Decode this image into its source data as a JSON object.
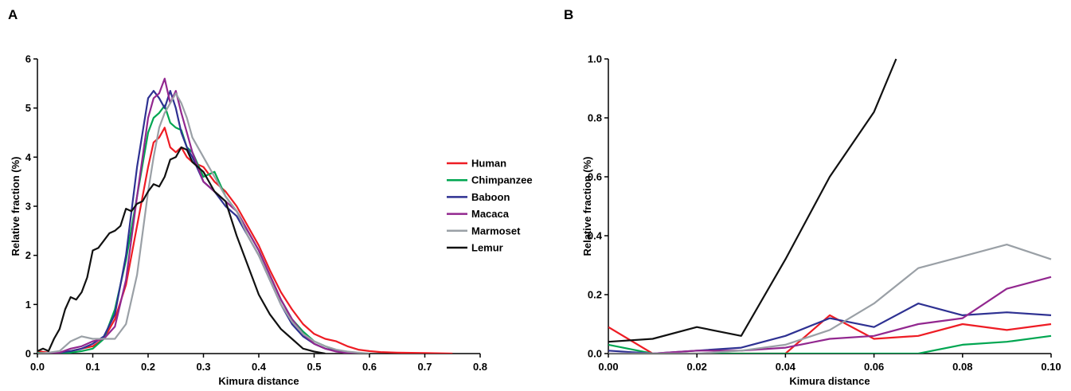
{
  "chart_data": [
    {
      "panel": "A",
      "type": "line",
      "xlabel": "Kimura distance",
      "ylabel": "Relative fraction (%)",
      "xlim": [
        0,
        0.8
      ],
      "ylim": [
        0,
        6
      ],
      "xticks": [
        "0.0",
        "0.1",
        "0.2",
        "0.3",
        "0.4",
        "0.5",
        "0.6",
        "0.7",
        "0.8"
      ],
      "yticks": [
        "0",
        "1",
        "2",
        "3",
        "4",
        "5",
        "6"
      ],
      "grid": false,
      "legend_position": "right",
      "series": [
        {
          "name": "Human",
          "color": "#ee1c24",
          "x": [
            0.0,
            0.02,
            0.04,
            0.06,
            0.08,
            0.1,
            0.12,
            0.14,
            0.16,
            0.18,
            0.2,
            0.21,
            0.22,
            0.23,
            0.24,
            0.25,
            0.26,
            0.27,
            0.28,
            0.3,
            0.32,
            0.34,
            0.36,
            0.38,
            0.4,
            0.42,
            0.44,
            0.46,
            0.48,
            0.5,
            0.52,
            0.54,
            0.56,
            0.58,
            0.6,
            0.62,
            0.65,
            0.7,
            0.75
          ],
          "y": [
            0.05,
            0.02,
            0.0,
            0.05,
            0.1,
            0.15,
            0.3,
            0.7,
            1.4,
            2.6,
            3.8,
            4.3,
            4.4,
            4.6,
            4.2,
            4.1,
            4.2,
            4.0,
            3.9,
            3.8,
            3.5,
            3.3,
            3.0,
            2.6,
            2.2,
            1.7,
            1.25,
            0.9,
            0.6,
            0.4,
            0.3,
            0.25,
            0.15,
            0.08,
            0.05,
            0.03,
            0.02,
            0.01,
            0.0
          ]
        },
        {
          "name": "Chimpanzee",
          "color": "#00a651",
          "x": [
            0.0,
            0.02,
            0.04,
            0.06,
            0.08,
            0.1,
            0.12,
            0.14,
            0.16,
            0.18,
            0.2,
            0.21,
            0.22,
            0.23,
            0.24,
            0.25,
            0.26,
            0.27,
            0.28,
            0.3,
            0.32,
            0.34,
            0.36,
            0.38,
            0.4,
            0.42,
            0.44,
            0.46,
            0.48,
            0.5,
            0.52,
            0.54,
            0.56,
            0.58,
            0.6
          ],
          "y": [
            0.02,
            0.0,
            0.0,
            0.02,
            0.05,
            0.1,
            0.3,
            0.9,
            1.9,
            3.2,
            4.5,
            4.8,
            4.9,
            5.05,
            4.7,
            4.6,
            4.55,
            4.2,
            4.1,
            3.6,
            3.7,
            3.2,
            2.9,
            2.5,
            2.1,
            1.6,
            1.1,
            0.7,
            0.45,
            0.25,
            0.15,
            0.07,
            0.03,
            0.01,
            0.0
          ]
        },
        {
          "name": "Baboon",
          "color": "#2e3192",
          "x": [
            0.0,
            0.02,
            0.04,
            0.06,
            0.08,
            0.1,
            0.12,
            0.14,
            0.16,
            0.18,
            0.2,
            0.21,
            0.22,
            0.23,
            0.24,
            0.25,
            0.26,
            0.27,
            0.28,
            0.3,
            0.32,
            0.34,
            0.36,
            0.38,
            0.4,
            0.42,
            0.44,
            0.46,
            0.48,
            0.5,
            0.52,
            0.54,
            0.56,
            0.58
          ],
          "y": [
            0.0,
            0.0,
            0.02,
            0.05,
            0.1,
            0.2,
            0.35,
            0.8,
            2.0,
            3.8,
            5.2,
            5.35,
            5.2,
            5.0,
            5.35,
            5.0,
            4.5,
            4.2,
            4.0,
            3.5,
            3.3,
            3.0,
            2.8,
            2.4,
            2.0,
            1.5,
            1.0,
            0.6,
            0.35,
            0.2,
            0.1,
            0.05,
            0.02,
            0.0
          ]
        },
        {
          "name": "Macaca",
          "color": "#92278f",
          "x": [
            0.0,
            0.02,
            0.04,
            0.06,
            0.08,
            0.1,
            0.12,
            0.14,
            0.16,
            0.18,
            0.2,
            0.21,
            0.22,
            0.23,
            0.24,
            0.25,
            0.26,
            0.27,
            0.28,
            0.3,
            0.32,
            0.34,
            0.36,
            0.38,
            0.4,
            0.42,
            0.44,
            0.46,
            0.48,
            0.5,
            0.52,
            0.54,
            0.56,
            0.58
          ],
          "y": [
            0.0,
            0.0,
            0.02,
            0.1,
            0.15,
            0.25,
            0.3,
            0.55,
            1.5,
            3.2,
            4.8,
            5.2,
            5.3,
            5.6,
            5.1,
            5.35,
            4.9,
            4.5,
            4.1,
            3.5,
            3.3,
            3.1,
            2.9,
            2.5,
            2.1,
            1.6,
            1.1,
            0.7,
            0.4,
            0.2,
            0.1,
            0.04,
            0.01,
            0.0
          ]
        },
        {
          "name": "Marmoset",
          "color": "#9aa0a6",
          "x": [
            0.0,
            0.02,
            0.04,
            0.06,
            0.08,
            0.1,
            0.12,
            0.14,
            0.16,
            0.18,
            0.2,
            0.21,
            0.22,
            0.23,
            0.24,
            0.25,
            0.26,
            0.27,
            0.28,
            0.3,
            0.32,
            0.34,
            0.36,
            0.38,
            0.4,
            0.42,
            0.44,
            0.46,
            0.48,
            0.5,
            0.52,
            0.54,
            0.56,
            0.58,
            0.6
          ],
          "y": [
            0.0,
            0.02,
            0.05,
            0.25,
            0.35,
            0.3,
            0.3,
            0.3,
            0.6,
            1.6,
            3.3,
            4.0,
            4.6,
            4.9,
            5.1,
            5.3,
            5.1,
            4.8,
            4.4,
            4.0,
            3.6,
            3.2,
            2.9,
            2.4,
            2.0,
            1.5,
            1.0,
            0.65,
            0.4,
            0.25,
            0.15,
            0.08,
            0.04,
            0.02,
            0.0
          ]
        },
        {
          "name": "Lemur",
          "color": "#111111",
          "x": [
            0.0,
            0.01,
            0.02,
            0.03,
            0.04,
            0.05,
            0.06,
            0.07,
            0.08,
            0.09,
            0.1,
            0.11,
            0.12,
            0.13,
            0.14,
            0.15,
            0.16,
            0.17,
            0.18,
            0.19,
            0.2,
            0.21,
            0.22,
            0.23,
            0.24,
            0.25,
            0.26,
            0.27,
            0.28,
            0.29,
            0.3,
            0.32,
            0.34,
            0.36,
            0.38,
            0.4,
            0.42,
            0.44,
            0.46,
            0.48,
            0.5,
            0.52
          ],
          "y": [
            0.05,
            0.1,
            0.05,
            0.3,
            0.5,
            0.9,
            1.15,
            1.1,
            1.25,
            1.55,
            2.1,
            2.15,
            2.3,
            2.45,
            2.5,
            2.6,
            2.95,
            2.9,
            3.05,
            3.1,
            3.3,
            3.45,
            3.4,
            3.6,
            3.95,
            4.0,
            4.2,
            4.15,
            3.9,
            3.8,
            3.7,
            3.3,
            3.1,
            2.4,
            1.8,
            1.2,
            0.8,
            0.5,
            0.3,
            0.1,
            0.04,
            0.0
          ]
        }
      ]
    },
    {
      "panel": "B",
      "type": "line",
      "xlabel": "Kimura distance",
      "ylabel": "Relative fraction (%)",
      "xlim": [
        0,
        0.1
      ],
      "ylim": [
        0,
        1.0
      ],
      "xticks": [
        "0.00",
        "0.02",
        "0.04",
        "0.06",
        "0.08",
        "0.10"
      ],
      "yticks": [
        "0.0",
        "0.2",
        "0.4",
        "0.6",
        "0.8",
        "1.0"
      ],
      "grid": false,
      "series": [
        {
          "name": "Human",
          "color": "#ee1c24",
          "x": [
            0.0,
            0.01,
            0.02,
            0.03,
            0.04,
            0.05,
            0.06,
            0.07,
            0.08,
            0.09,
            0.1
          ],
          "y": [
            0.09,
            0.0,
            0.0,
            0.0,
            0.0,
            0.13,
            0.05,
            0.06,
            0.1,
            0.08,
            0.1
          ]
        },
        {
          "name": "Chimpanzee",
          "color": "#00a651",
          "x": [
            0.0,
            0.01,
            0.02,
            0.03,
            0.04,
            0.05,
            0.06,
            0.07,
            0.08,
            0.09,
            0.1
          ],
          "y": [
            0.03,
            0.0,
            0.0,
            0.0,
            0.0,
            0.0,
            0.0,
            0.0,
            0.03,
            0.04,
            0.06
          ]
        },
        {
          "name": "Baboon",
          "color": "#2e3192",
          "x": [
            0.0,
            0.01,
            0.02,
            0.03,
            0.04,
            0.05,
            0.06,
            0.07,
            0.08,
            0.09,
            0.1
          ],
          "y": [
            0.01,
            0.0,
            0.01,
            0.02,
            0.06,
            0.12,
            0.09,
            0.17,
            0.13,
            0.14,
            0.13
          ]
        },
        {
          "name": "Macaca",
          "color": "#92278f",
          "x": [
            0.0,
            0.01,
            0.02,
            0.03,
            0.04,
            0.05,
            0.06,
            0.07,
            0.08,
            0.09,
            0.1
          ],
          "y": [
            0.0,
            0.0,
            0.01,
            0.01,
            0.02,
            0.05,
            0.06,
            0.1,
            0.12,
            0.22,
            0.26
          ]
        },
        {
          "name": "Marmoset",
          "color": "#9aa0a6",
          "x": [
            0.0,
            0.01,
            0.02,
            0.03,
            0.04,
            0.05,
            0.06,
            0.07,
            0.08,
            0.09,
            0.1
          ],
          "y": [
            0.0,
            0.0,
            0.0,
            0.01,
            0.03,
            0.08,
            0.17,
            0.29,
            0.33,
            0.37,
            0.32
          ]
        },
        {
          "name": "Lemur",
          "color": "#111111",
          "x": [
            0.0,
            0.01,
            0.02,
            0.03,
            0.04,
            0.05,
            0.06,
            0.065
          ],
          "y": [
            0.04,
            0.05,
            0.09,
            0.06,
            0.32,
            0.6,
            0.82,
            1.0
          ]
        }
      ]
    }
  ]
}
